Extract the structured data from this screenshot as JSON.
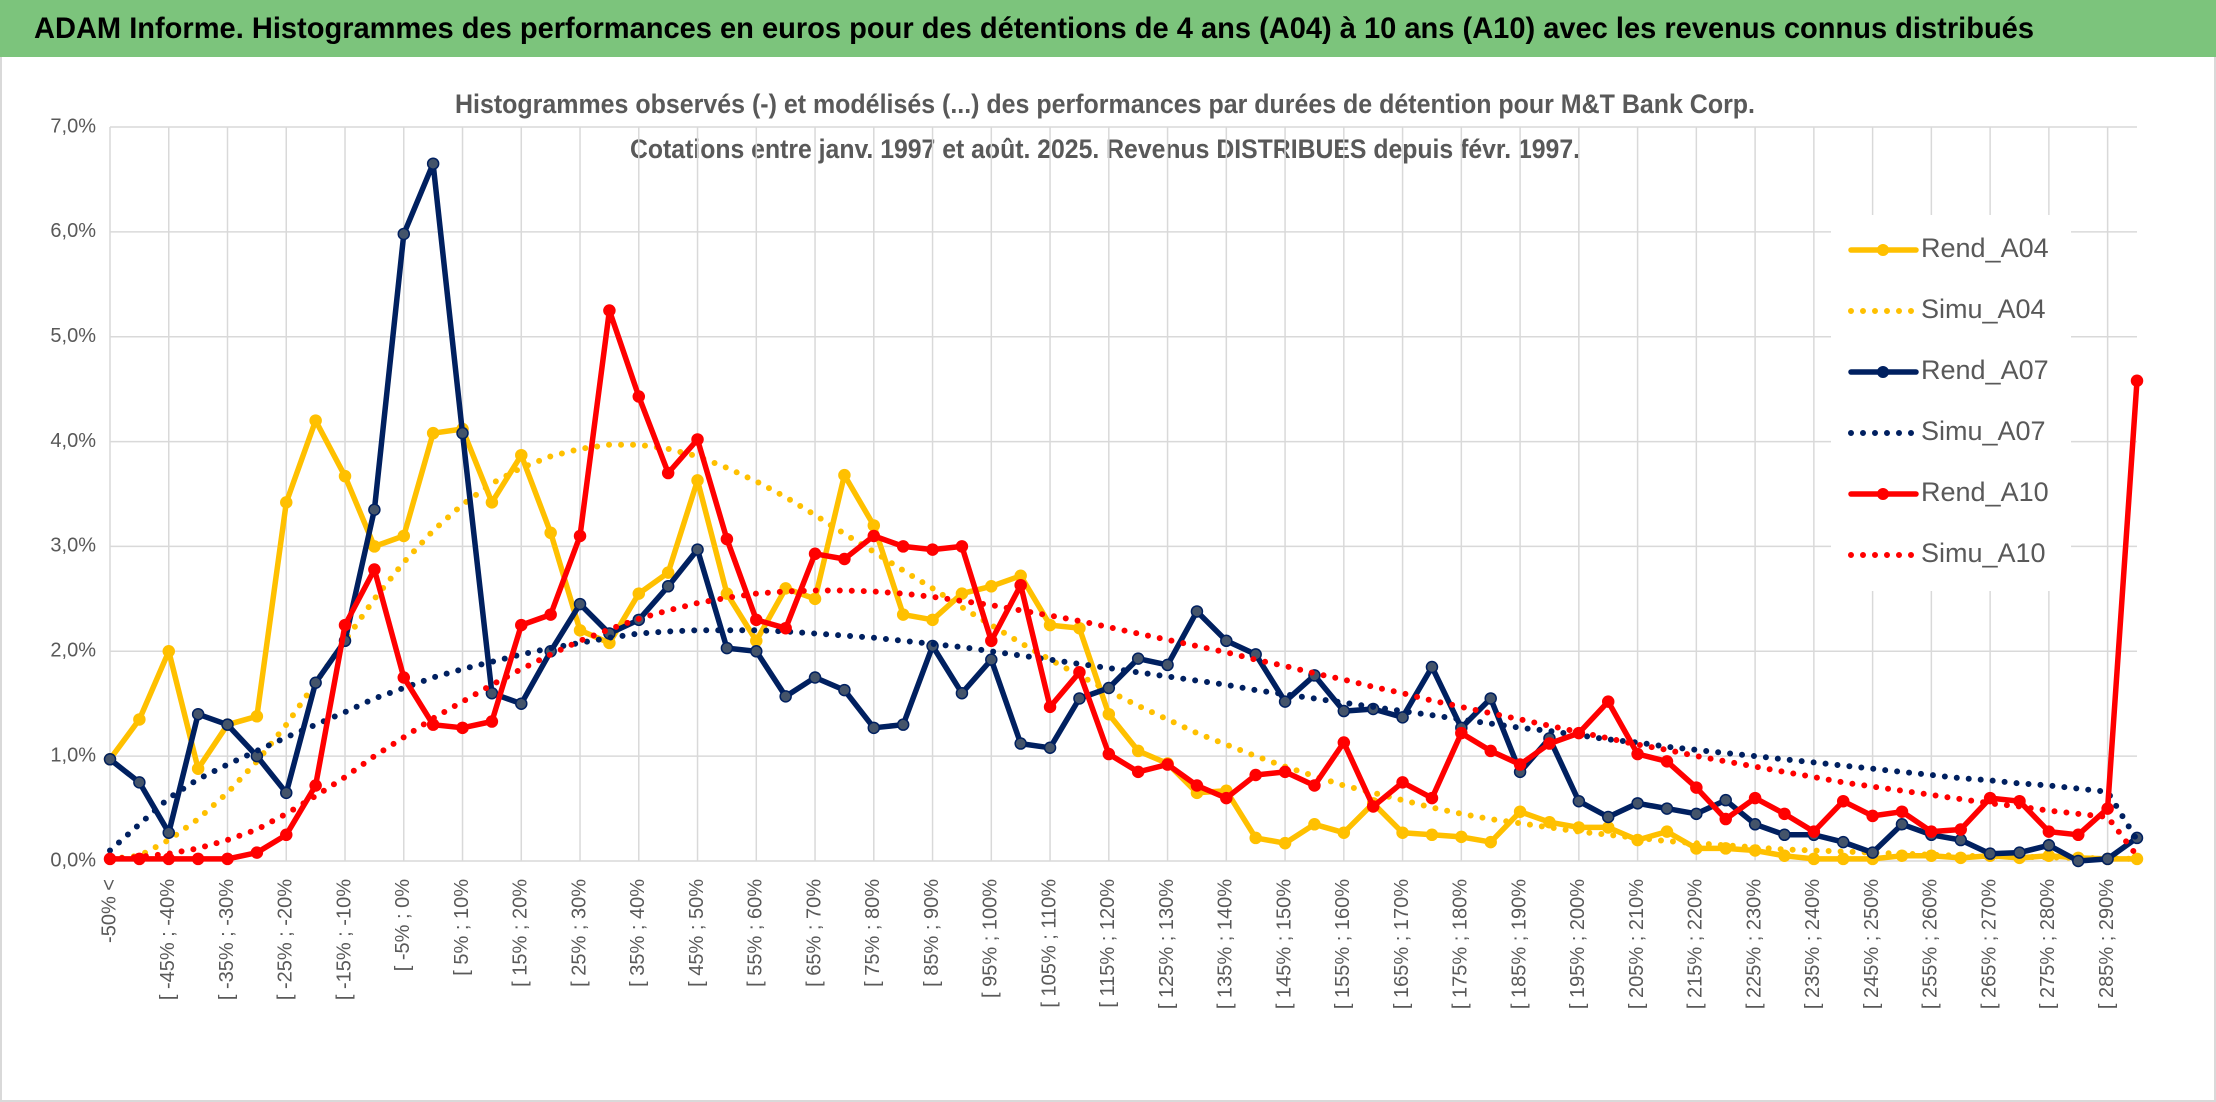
{
  "chart_data": {
    "type": "line",
    "title": "ADAM Informe. Histogrammes des performances en euros pour des détentions de 4 ans (A04) à 10 ans (A10) avec les revenus connus distribués",
    "subtitle": [
      "Histogrammes observés (-) et modélisés (...) des performances par durées de détention pour M&T Bank Corp.",
      "Cotations entre janv. 1997 et août. 2025. Revenus DISTRIBUES depuis févr. 1997."
    ],
    "categories": [
      "-50% <",
      null,
      "[ -45% ; -40%",
      null,
      "[ -35% ; -30%",
      null,
      "[ -25% ; -20%",
      null,
      "[ -15% ; -10%",
      null,
      "[ -5% ; 0%",
      null,
      "[ 5% ; 10%",
      null,
      "[ 15% ; 20%",
      null,
      "[ 25% ; 30%",
      null,
      "[ 35% ; 40%",
      null,
      "[ 45% ; 50%",
      null,
      "[ 55% ; 60%",
      null,
      "[ 65% ; 70%",
      null,
      "[ 75% ; 80%",
      null,
      "[ 85% ; 90%",
      null,
      "[ 95% ; 100%",
      null,
      "[ 105% ; 110%",
      null,
      "[ 115% ; 120%",
      null,
      "[ 125% ; 130%",
      null,
      "[ 135% ; 140%",
      null,
      "[ 145% ; 150%",
      null,
      "[ 155% ; 160%",
      null,
      "[ 165% ; 170%",
      null,
      "[ 175% ; 180%",
      null,
      "[ 185% ; 190%",
      null,
      "[ 195% ; 200%",
      null,
      "[ 205% ; 210%",
      null,
      "[ 215% ; 220%",
      null,
      "[ 225% ; 230%",
      null,
      "[ 235% ; 240%",
      null,
      "[ 245% ; 250%",
      null,
      "[ 255% ; 260%",
      null,
      "[ 265% ; 270%",
      null,
      "[ 275% ; 280%",
      null,
      "[ 285% ; 290%",
      null
    ],
    "series": [
      {
        "name": "Rend_A04",
        "color": "#ffc000",
        "style": "solid",
        "marker": true,
        "values": [
          0.97,
          1.35,
          2.0,
          0.88,
          1.3,
          1.38,
          3.42,
          4.2,
          3.67,
          3.0,
          3.1,
          4.08,
          4.12,
          3.42,
          3.87,
          3.13,
          2.2,
          2.08,
          2.55,
          2.75,
          3.63,
          2.55,
          2.1,
          2.6,
          2.5,
          3.68,
          3.2,
          2.35,
          2.3,
          2.55,
          2.62,
          2.72,
          2.25,
          2.22,
          1.4,
          1.05,
          0.93,
          0.65,
          0.67,
          0.22,
          0.17,
          0.35,
          0.27,
          0.55,
          0.27,
          0.25,
          0.23,
          0.18,
          0.47,
          0.37,
          0.32,
          0.32,
          0.2,
          0.28,
          0.12,
          0.12,
          0.1,
          0.05,
          0.02,
          0.02,
          0.02,
          0.05,
          0.05,
          0.03,
          0.05,
          0.03,
          0.05,
          0.03,
          0.02,
          0.02
        ]
      },
      {
        "name": "Simu_A04",
        "color": "#ffc000",
        "style": "dotted",
        "marker": false,
        "values": [
          0.02,
          0.05,
          0.2,
          0.4,
          0.65,
          0.95,
          1.3,
          1.7,
          2.1,
          2.5,
          2.85,
          3.15,
          3.4,
          3.6,
          3.75,
          3.86,
          3.93,
          3.97,
          3.97,
          3.93,
          3.86,
          3.75,
          3.62,
          3.47,
          3.3,
          3.12,
          2.95,
          2.77,
          2.6,
          2.42,
          2.25,
          2.08,
          1.92,
          1.77,
          1.62,
          1.48,
          1.35,
          1.22,
          1.11,
          1.0,
          0.9,
          0.81,
          0.72,
          0.65,
          0.58,
          0.51,
          0.45,
          0.4,
          0.36,
          0.32,
          0.28,
          0.25,
          0.22,
          0.19,
          0.17,
          0.15,
          0.13,
          0.11,
          0.1,
          0.09,
          0.08,
          0.07,
          0.06,
          0.05,
          0.045,
          0.04,
          0.035,
          0.03,
          0.025,
          0.02
        ]
      },
      {
        "name": "Rend_A07",
        "color": "#002060",
        "style": "solid",
        "marker": true,
        "values": [
          0.97,
          0.75,
          0.27,
          1.4,
          1.3,
          1.0,
          0.65,
          1.7,
          2.1,
          3.35,
          5.98,
          6.65,
          4.08,
          1.6,
          1.5,
          2.0,
          2.45,
          2.17,
          2.3,
          2.62,
          2.97,
          2.03,
          2.0,
          1.57,
          1.75,
          1.63,
          1.27,
          1.3,
          2.05,
          1.6,
          1.92,
          1.12,
          1.08,
          1.55,
          1.65,
          1.93,
          1.87,
          2.38,
          2.1,
          1.97,
          1.52,
          1.77,
          1.43,
          1.45,
          1.37,
          1.85,
          1.27,
          1.55,
          0.85,
          1.17,
          0.57,
          0.42,
          0.55,
          0.5,
          0.45,
          0.58,
          0.35,
          0.25,
          0.25,
          0.18,
          0.08,
          0.35,
          0.25,
          0.2,
          0.07,
          0.08,
          0.15,
          0.0,
          0.02,
          0.22
        ]
      },
      {
        "name": "Simu_A07",
        "color": "#002060",
        "style": "dotted",
        "marker": false,
        "values": [
          0.1,
          0.35,
          0.6,
          0.78,
          0.92,
          1.05,
          1.18,
          1.3,
          1.42,
          1.55,
          1.65,
          1.75,
          1.83,
          1.9,
          1.97,
          2.03,
          2.08,
          2.13,
          2.17,
          2.19,
          2.2,
          2.2,
          2.2,
          2.19,
          2.17,
          2.15,
          2.13,
          2.1,
          2.07,
          2.04,
          2.0,
          1.96,
          1.92,
          1.88,
          1.84,
          1.8,
          1.76,
          1.72,
          1.68,
          1.63,
          1.59,
          1.55,
          1.51,
          1.47,
          1.43,
          1.39,
          1.35,
          1.31,
          1.27,
          1.24,
          1.2,
          1.16,
          1.13,
          1.09,
          1.06,
          1.03,
          1.0,
          0.97,
          0.94,
          0.91,
          0.88,
          0.85,
          0.82,
          0.79,
          0.77,
          0.74,
          0.72,
          0.69,
          0.66,
          0.2
        ]
      },
      {
        "name": "Rend_A10",
        "color": "#ff0000",
        "style": "solid",
        "marker": true,
        "values": [
          0.02,
          0.02,
          0.02,
          0.02,
          0.02,
          0.08,
          0.25,
          0.72,
          2.25,
          2.78,
          1.75,
          1.3,
          1.27,
          1.33,
          2.25,
          2.35,
          3.1,
          5.25,
          4.43,
          3.7,
          4.02,
          3.07,
          2.3,
          2.22,
          2.93,
          2.88,
          3.1,
          3.0,
          2.97,
          3.0,
          2.1,
          2.63,
          1.47,
          1.8,
          1.02,
          0.85,
          0.92,
          0.72,
          0.6,
          0.82,
          0.85,
          0.72,
          1.13,
          0.52,
          0.75,
          0.6,
          1.22,
          1.05,
          0.92,
          1.12,
          1.22,
          1.52,
          1.02,
          0.95,
          0.7,
          0.4,
          0.6,
          0.45,
          0.28,
          0.57,
          0.43,
          0.47,
          0.28,
          0.3,
          0.6,
          0.57,
          0.28,
          0.25,
          0.5,
          4.58
        ]
      },
      {
        "name": "Simu_A10",
        "color": "#ff0000",
        "style": "dotted",
        "marker": false,
        "values": [
          0.02,
          0.04,
          0.07,
          0.12,
          0.2,
          0.3,
          0.45,
          0.62,
          0.8,
          1.0,
          1.18,
          1.36,
          1.52,
          1.68,
          1.83,
          1.97,
          2.1,
          2.21,
          2.31,
          2.39,
          2.46,
          2.51,
          2.55,
          2.57,
          2.58,
          2.58,
          2.57,
          2.55,
          2.52,
          2.48,
          2.44,
          2.39,
          2.34,
          2.29,
          2.23,
          2.17,
          2.11,
          2.05,
          1.99,
          1.92,
          1.86,
          1.79,
          1.73,
          1.66,
          1.6,
          1.53,
          1.47,
          1.41,
          1.35,
          1.29,
          1.23,
          1.17,
          1.11,
          1.06,
          1.0,
          0.95,
          0.9,
          0.85,
          0.8,
          0.75,
          0.71,
          0.67,
          0.63,
          0.59,
          0.55,
          0.52,
          0.48,
          0.45,
          0.42,
          0.05
        ]
      }
    ],
    "ylim": [
      0,
      7
    ],
    "yticks": [
      {
        "value": 0,
        "label": "0,0%"
      },
      {
        "value": 1,
        "label": "1,0%"
      },
      {
        "value": 2,
        "label": "2,0%"
      },
      {
        "value": 3,
        "label": "3,0%"
      },
      {
        "value": 4,
        "label": "4,0%"
      },
      {
        "value": 5,
        "label": "5,0%"
      },
      {
        "value": 6,
        "label": "6,0%"
      },
      {
        "value": 7,
        "label": "7,0%"
      }
    ],
    "grid": true,
    "legend": "right"
  }
}
